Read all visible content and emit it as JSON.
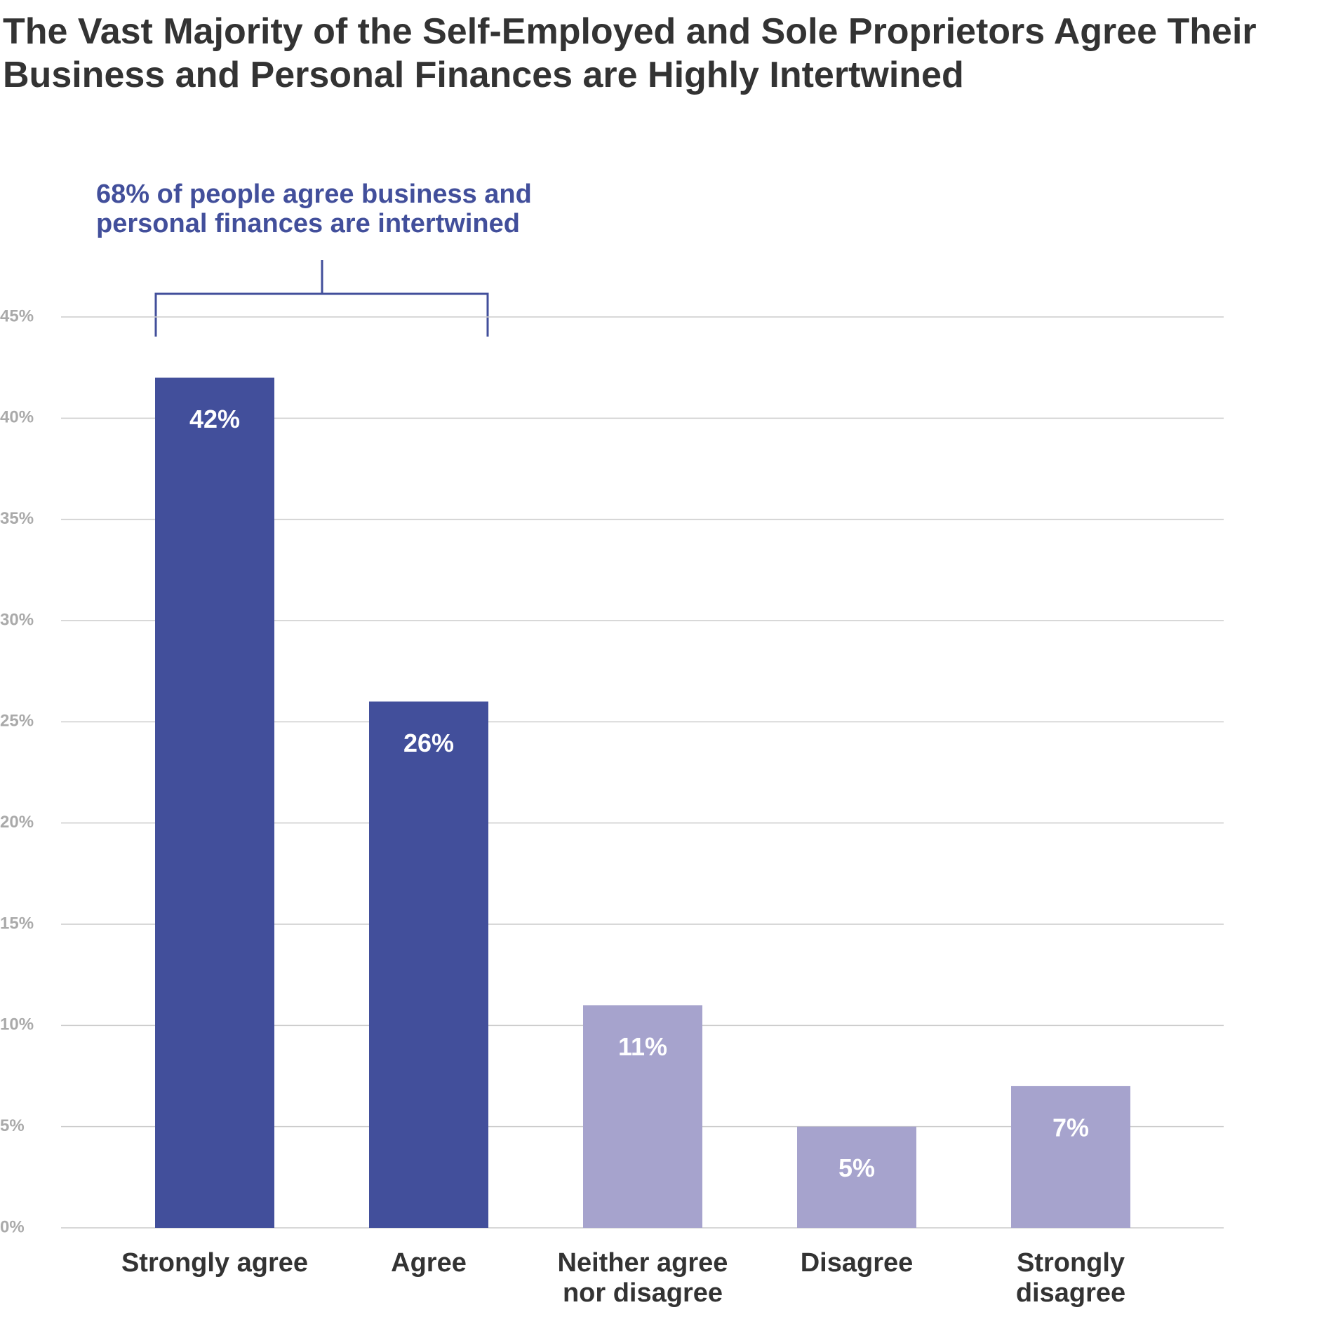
{
  "chart_data": {
    "type": "bar",
    "title": "The Vast Majority of the Self-Employed and Sole Proprietors Agree Their Business and Personal Finances are Highly Intertwined",
    "annotation": "68% of people agree business and personal finances are intertwined",
    "categories": [
      "Strongly agree",
      "Agree",
      "Neither agree nor disagree",
      "Disagree",
      "Strongly disagree"
    ],
    "values": [
      42,
      26,
      11,
      5,
      7
    ],
    "value_labels": [
      "42%",
      "26%",
      "11%",
      "5%",
      "7%"
    ],
    "colors": [
      "#424f9b",
      "#424f9b",
      "#a6a3cd",
      "#a6a3cd",
      "#a6a3cd"
    ],
    "ylim": [
      0,
      45
    ],
    "yticks": [
      {
        "value": 0,
        "label": "0%"
      },
      {
        "value": 5,
        "label": "5%"
      },
      {
        "value": 10,
        "label": "10%"
      },
      {
        "value": 15,
        "label": "15%"
      },
      {
        "value": 20,
        "label": "20%"
      },
      {
        "value": 25,
        "label": "25%"
      },
      {
        "value": 30,
        "label": "30%"
      },
      {
        "value": 35,
        "label": "35%"
      },
      {
        "value": 40,
        "label": "40%"
      },
      {
        "value": 45,
        "label": "45%"
      }
    ],
    "grid": true
  }
}
